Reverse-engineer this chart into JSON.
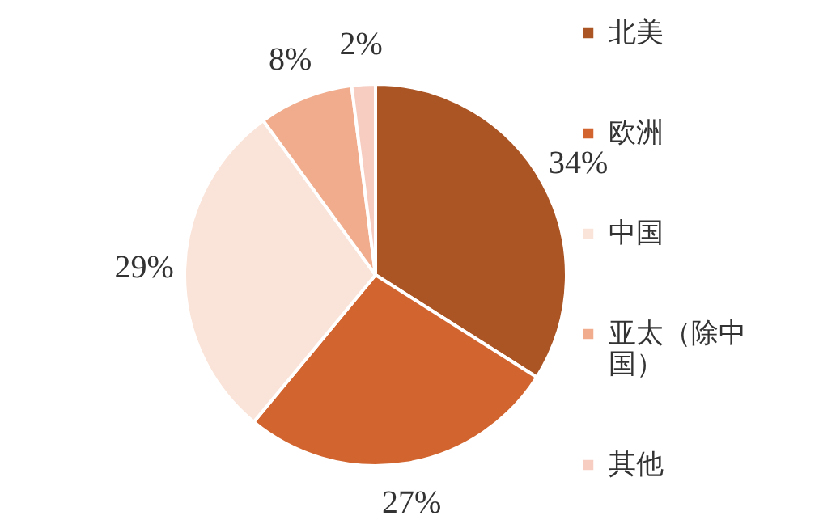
{
  "chart_data": {
    "type": "pie",
    "categories": [
      "北美",
      "欧洲",
      "中国",
      "亚太（除中国）",
      "其他"
    ],
    "values": [
      34,
      27,
      29,
      8,
      2
    ],
    "colors": [
      "#ab5424",
      "#d2652f",
      "#fae3d8",
      "#f0ac8c",
      "#f6cdc0"
    ],
    "value_labels": [
      "34%",
      "27%",
      "29%",
      "8%",
      "2%"
    ],
    "legend": "right"
  }
}
